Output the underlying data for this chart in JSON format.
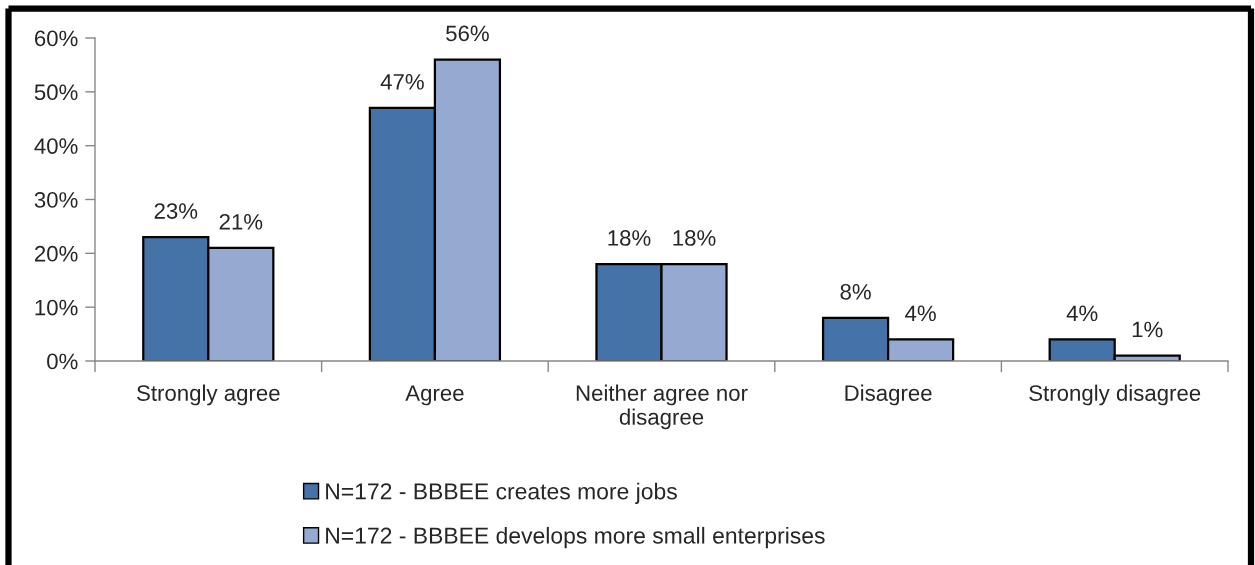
{
  "chart_data": {
    "type": "bar",
    "categories": [
      "Strongly agree",
      "Agree",
      "Neither agree nor disagree",
      "Disagree",
      "Strongly disagree"
    ],
    "series": [
      {
        "name": "N=172 - BBBEE creates more jobs",
        "color": "#4572a7",
        "values": [
          23,
          47,
          18,
          8,
          4
        ],
        "value_labels": [
          "23%",
          "47%",
          "18%",
          "8%",
          "4%"
        ]
      },
      {
        "name": "N=172 - BBBEE develops more small enterprises",
        "color": "#95a9d1",
        "values": [
          21,
          56,
          18,
          4,
          1
        ],
        "value_labels": [
          "21%",
          "56%",
          "18%",
          "4%",
          "1%"
        ]
      }
    ],
    "ylim": [
      0,
      60
    ],
    "yticks": [
      {
        "value": 0,
        "label": "0%"
      },
      {
        "value": 10,
        "label": "10%"
      },
      {
        "value": 20,
        "label": "20%"
      },
      {
        "value": 30,
        "label": "30%"
      },
      {
        "value": 40,
        "label": "40%"
      },
      {
        "value": 50,
        "label": "50%"
      },
      {
        "value": 60,
        "label": "60%"
      }
    ],
    "legend": "bottom"
  }
}
